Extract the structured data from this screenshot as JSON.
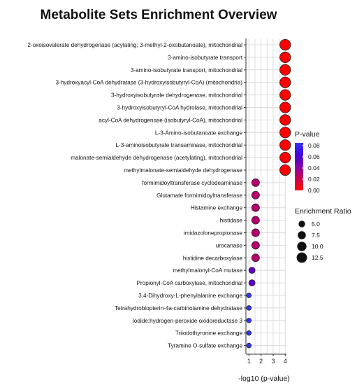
{
  "chart_data": {
    "type": "scatter",
    "title": "Metabolite Sets Enrichment Overview",
    "xlabel": "-log10 (p-value)",
    "xlim": [
      0.75,
      4.1
    ],
    "x_ticks": [
      1,
      2,
      3,
      4
    ],
    "grid": true,
    "legend_position": "right",
    "categories": [
      "2-oxoisovalerate dehydrogenase (acylating; 3-methyl-2-oxobutanoate), mitochondrial",
      "3-amino-isobutyrate transport",
      "3-amino-isobutyrate transport, mitochondrial",
      "3-hydroxyacyl-CoA dehydratase (3-hydroxyisobutyryl-CoA) (mitochondria)",
      "3-hydroxyisobutyrate dehydrogenase, mitochondrial",
      "3-hydroxyisobutyryl-CoA hydrolase, mitochondrial",
      "acyl-CoA dehydrogenase (isobutyryl-CoA), mitochondrial",
      "L-3-Amino-isobutanoate exchange",
      "L-3-aminoisobutyrate transaminase, mitochondrial",
      "malonate-semialdehyde dehydrogenase (acetylating), mitochondrial",
      "methylmalonate-semialdehyde dehydrogenase",
      "formimidoyltransferase cyclodeaminase",
      "Glutamate formimidoyltransferase",
      "Histamine exchange",
      "histidase",
      "imidazolonepropionase",
      "urocanase",
      "histidine decarboxylase",
      "methylmalonyl-CoA mutase",
      "Propionyl-CoA carboxylase, mitochondrial",
      "3,4-Dihydroxy-L-phenylalanine exchange",
      "Tetrahydrobiopterin-4a-carbinolamine dehydratase",
      "Iodide:hydrogen-peroxide oxidoreductase 3",
      "Triiodothyronine exchange",
      "Tyramine O-sulfate exchange"
    ],
    "x": [
      4.0,
      4.0,
      4.0,
      4.0,
      4.0,
      4.0,
      4.0,
      4.0,
      4.0,
      4.0,
      4.0,
      1.55,
      1.55,
      1.55,
      1.55,
      1.55,
      1.55,
      1.55,
      1.25,
      1.25,
      1.0,
      1.0,
      1.0,
      1.0,
      1.0
    ],
    "p_value": [
      0.0001,
      0.0001,
      0.0001,
      0.0001,
      0.0001,
      0.0001,
      0.0001,
      0.0001,
      0.0001,
      0.0001,
      0.0001,
      0.028,
      0.028,
      0.028,
      0.028,
      0.028,
      0.028,
      0.028,
      0.056,
      0.056,
      0.1,
      0.1,
      0.1,
      0.1,
      0.1
    ],
    "enrichment_ratio": [
      13.5,
      13.5,
      13.5,
      13.5,
      13.5,
      13.5,
      13.5,
      13.5,
      13.5,
      13.5,
      13.5,
      7.0,
      7.0,
      7.0,
      7.0,
      7.0,
      7.0,
      7.0,
      4.5,
      4.5,
      2.5,
      2.5,
      2.5,
      2.5,
      2.5
    ],
    "color_legend": {
      "title": "P-value",
      "ticks": [
        "0.08",
        "0.06",
        "0.04",
        "0.02",
        "0.00"
      ],
      "tick_values": [
        0.08,
        0.06,
        0.04,
        0.02,
        0.0
      ],
      "range": [
        0.0,
        0.085
      ],
      "colors": [
        "#ff0000",
        "#cc0050",
        "#8800aa",
        "#4400dd",
        "#3333ff"
      ]
    },
    "size_legend": {
      "title": "Enrichment Ratio",
      "labels": [
        "5.0",
        "7.5",
        "10.0",
        "12.5"
      ],
      "values": [
        5.0,
        7.5,
        10.0,
        12.5
      ]
    }
  }
}
